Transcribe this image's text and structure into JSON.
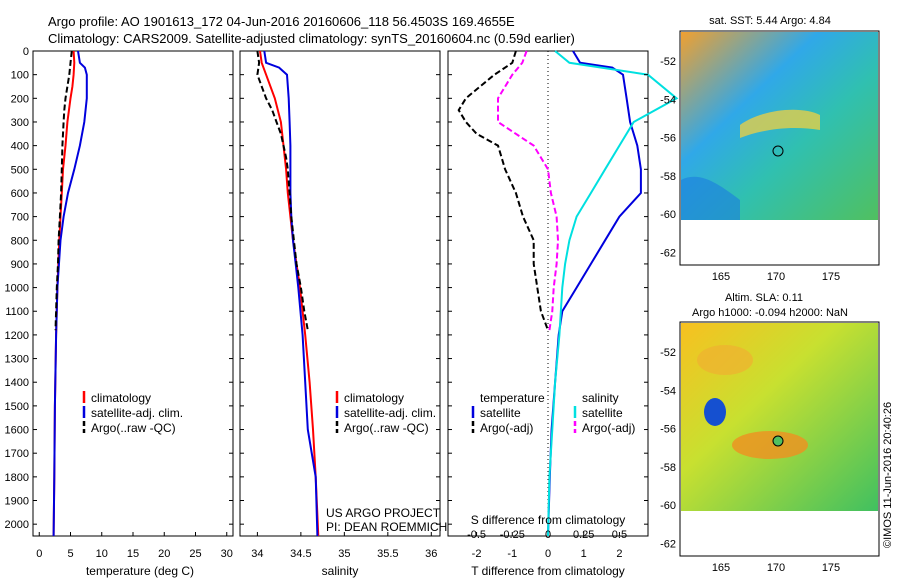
{
  "header": {
    "line1": "Argo profile: AO 1901613_172 04-Jun-2016 20160606_118 56.4503S 169.4655E",
    "line2": "Climatology: CARS2009. Satellite-adjusted climatology: synTS_20160604.nc (0.59d earlier)"
  },
  "colors": {
    "climatology": "#ff0000",
    "satellite": "#0000dd",
    "argo": "#000000",
    "salinity_diff_sat": "#00e0e0",
    "salinity_diff_argo": "#ff00ff"
  },
  "y_axis": {
    "ticks": [
      0,
      100,
      200,
      300,
      400,
      500,
      600,
      700,
      800,
      900,
      1000,
      1100,
      1200,
      1300,
      1400,
      1500,
      1600,
      1700,
      1800,
      1900,
      2000
    ],
    "range": [
      0,
      2050
    ]
  },
  "chart_data": [
    {
      "type": "line",
      "xlabel": "temperature (deg C)",
      "xlim": [
        -1,
        31
      ],
      "xticks": [
        "0",
        "5",
        "10",
        "15",
        "20",
        "25",
        "30"
      ],
      "xtick_values": [
        0,
        5,
        10,
        15,
        20,
        25,
        30
      ],
      "legend": {
        "placement": "bottom-left",
        "items": [
          "climatology",
          "satellite-adj. clim.",
          "Argo(..raw -QC)"
        ]
      },
      "series": [
        {
          "name": "climatology",
          "depth": [
            0,
            50,
            100,
            150,
            200,
            300,
            400,
            500,
            600,
            700,
            800,
            1000,
            1200,
            1500,
            1800,
            2050
          ],
          "values": [
            5.5,
            5.6,
            5.5,
            5.3,
            5.0,
            4.5,
            4.2,
            3.8,
            3.6,
            3.4,
            3.2,
            2.9,
            2.7,
            2.5,
            2.4,
            2.3
          ]
        },
        {
          "name": "satellite-adj. clim.",
          "depth": [
            0,
            50,
            70,
            100,
            200,
            300,
            400,
            500,
            600,
            700,
            800,
            1000,
            1200,
            1500,
            1800,
            2050
          ],
          "values": [
            6.2,
            6.5,
            7.3,
            7.6,
            7.6,
            7.2,
            6.5,
            5.6,
            4.6,
            3.9,
            3.4,
            2.9,
            2.7,
            2.5,
            2.4,
            2.3
          ]
        },
        {
          "name": "Argo(..raw -QC)",
          "depth": [
            0,
            50,
            100,
            150,
            200,
            250,
            300,
            400,
            500,
            600,
            700,
            800,
            900,
            1000,
            1100,
            1180
          ],
          "values": [
            5.2,
            5.0,
            4.8,
            4.5,
            4.2,
            4.0,
            3.9,
            3.7,
            3.6,
            3.5,
            3.3,
            3.1,
            3.0,
            2.8,
            2.7,
            2.6
          ]
        }
      ]
    },
    {
      "type": "line",
      "xlabel": "salinity",
      "xlim": [
        33.8,
        36.1
      ],
      "xticks": [
        "34",
        "34.5",
        "35",
        "35.5",
        "36"
      ],
      "xtick_values": [
        34,
        34.5,
        35,
        35.5,
        36
      ],
      "legend": {
        "placement": "bottom-right",
        "items": [
          "climatology",
          "satellite-adj. clim.",
          "Argo(..raw -QC)"
        ]
      },
      "annotation": [
        "US ARGO PROJECT",
        "PI: DEAN ROEMMICH"
      ],
      "series": [
        {
          "name": "climatology",
          "depth": [
            0,
            50,
            100,
            200,
            300,
            400,
            500,
            600,
            700,
            800,
            900,
            1000,
            1200,
            1400,
            1600,
            1800,
            2050
          ],
          "values": [
            34.03,
            34.05,
            34.1,
            34.2,
            34.27,
            34.3,
            34.33,
            34.35,
            34.38,
            34.41,
            34.45,
            34.49,
            34.55,
            34.6,
            34.64,
            34.67,
            34.7
          ]
        },
        {
          "name": "satellite-adj. clim.",
          "depth": [
            0,
            50,
            70,
            100,
            200,
            300,
            400,
            500,
            600,
            700,
            800,
            900,
            1000,
            1200,
            1400,
            1600,
            1800,
            2050
          ],
          "values": [
            34.08,
            34.1,
            34.25,
            34.34,
            34.36,
            34.37,
            34.38,
            34.38,
            34.38,
            34.39,
            34.41,
            34.44,
            34.47,
            34.52,
            34.55,
            34.58,
            34.67,
            34.69
          ]
        },
        {
          "name": "Argo(..raw -QC)",
          "depth": [
            0,
            50,
            100,
            150,
            200,
            250,
            300,
            350,
            400,
            450,
            500,
            600,
            700,
            800,
            900,
            1000,
            1100,
            1180
          ],
          "values": [
            34.0,
            34.02,
            34.0,
            34.05,
            34.1,
            34.17,
            34.22,
            34.27,
            34.3,
            34.33,
            34.35,
            34.37,
            34.39,
            34.42,
            34.45,
            34.5,
            34.54,
            34.58
          ]
        }
      ]
    },
    {
      "type": "line",
      "xlabel": "T difference from climatology",
      "xlabel_top": "S difference from climatology",
      "xlim": [
        -2.8,
        2.8
      ],
      "xticks": [
        "-2",
        "-1",
        "0",
        "1",
        "2"
      ],
      "xtick_values": [
        -2,
        -1,
        0,
        1,
        2
      ],
      "top_xticks": [
        "-0.5",
        "-0.25",
        "0",
        "0.25",
        "0.5"
      ],
      "legend": {
        "placement": "bottom",
        "items": [
          "temperature",
          "satellite",
          "Argo(-adj)",
          "salinity",
          "satellite",
          "Argo(-adj)"
        ]
      },
      "series": [
        {
          "name": "satellite",
          "group": "temperature",
          "depth": [
            0,
            50,
            70,
            100,
            200,
            300,
            400,
            500,
            600,
            700,
            800,
            900,
            1000,
            1100,
            1200,
            1400,
            1600,
            1800,
            2050
          ],
          "values": [
            0.7,
            0.9,
            1.8,
            2.1,
            2.2,
            2.3,
            2.5,
            2.6,
            2.6,
            2.0,
            1.6,
            1.2,
            0.8,
            0.4,
            0.3,
            0.2,
            0.1,
            0.05,
            0.0
          ]
        },
        {
          "name": "Argo(-adj)",
          "group": "temperature",
          "depth": [
            0,
            50,
            100,
            150,
            200,
            250,
            300,
            350,
            400,
            450,
            500,
            600,
            700,
            800,
            900,
            1000,
            1100,
            1180
          ],
          "values": [
            -0.9,
            -1.0,
            -1.5,
            -1.9,
            -2.3,
            -2.5,
            -2.3,
            -2.0,
            -1.4,
            -1.3,
            -1.2,
            -0.9,
            -0.7,
            -0.4,
            -0.4,
            -0.3,
            -0.2,
            0.0
          ]
        },
        {
          "name": "satellite",
          "group": "salinity",
          "depth": [
            0,
            50,
            100,
            200,
            300,
            400,
            500,
            600,
            700,
            800,
            900,
            1000,
            1200,
            1400,
            1600,
            1800,
            2050
          ],
          "values": [
            0.05,
            0.15,
            0.7,
            0.9,
            0.6,
            0.5,
            0.4,
            0.3,
            0.2,
            0.15,
            0.12,
            0.1,
            0.08,
            0.05,
            0.03,
            0.01,
            0.0
          ]
        },
        {
          "name": "Argo(-adj)",
          "group": "salinity",
          "depth": [
            0,
            50,
            100,
            200,
            300,
            400,
            500,
            600,
            700,
            800,
            900,
            1000,
            1100,
            1180
          ],
          "values": [
            -0.15,
            -0.18,
            -0.25,
            -0.35,
            -0.35,
            -0.1,
            0.0,
            0.02,
            0.06,
            0.07,
            0.06,
            0.04,
            0.03,
            0.01
          ]
        }
      ]
    },
    {
      "type": "heatmap",
      "title": "sat. SST: 5.44 Argo: 4.84",
      "yticks": [
        "-52",
        "-54",
        "-56",
        "-58",
        "-60",
        "-62"
      ],
      "xticks": [
        "165",
        "170",
        "175"
      ],
      "marker": {
        "lon": 169.4655,
        "lat": -56.4503
      }
    },
    {
      "type": "heatmap",
      "title": "Altim. SLA: 0.11",
      "subtitle": "Argo h1000: -0.094 h2000: NaN",
      "yticks": [
        "-52",
        "-54",
        "-56",
        "-58",
        "-60",
        "-62"
      ],
      "xticks": [
        "165",
        "170",
        "175"
      ],
      "marker": {
        "lon": 169.4655,
        "lat": -56.4503
      }
    }
  ],
  "stamp": "©IMOS 11-Jun-2016 20:40:26"
}
